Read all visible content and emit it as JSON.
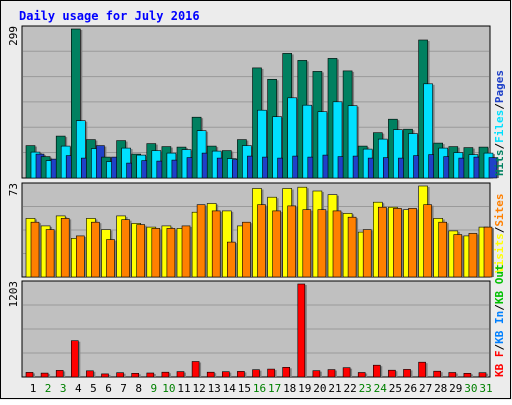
{
  "chart_data": {
    "type": "bar",
    "title": "Daily usage for July 2016",
    "colors": {
      "background": "#ececec",
      "plot_bg": "#c0c0c0",
      "grid": "#9a9a9a",
      "title": "#0000ff",
      "hits": "#008060",
      "files": "#00e0ff",
      "pages": "#1f41c8",
      "visits": "#ffff00",
      "sites": "#ff8000",
      "kb_f": "#ff0000",
      "kb_in": "#0080ff",
      "kb_out": "#00c000",
      "weekend": "#008000",
      "weekday": "#000000"
    },
    "categories": [
      "1",
      "2",
      "3",
      "4",
      "5",
      "6",
      "7",
      "8",
      "9",
      "10",
      "11",
      "12",
      "13",
      "14",
      "15",
      "16",
      "17",
      "18",
      "19",
      "20",
      "21",
      "22",
      "23",
      "24",
      "25",
      "26",
      "27",
      "28",
      "29",
      "30",
      "31"
    ],
    "weekend_days": [
      "2",
      "3",
      "9",
      "10",
      "16",
      "17",
      "23",
      "24",
      "30",
      "31"
    ],
    "panels": [
      {
        "id": "hits-files-pages",
        "ymax_label": "299",
        "ylim": [
          0,
          299
        ],
        "legend": [
          {
            "label": "Hits",
            "color": "#008060"
          },
          {
            "label": "Files",
            "color": "#00e0ff"
          },
          {
            "label": "Pages",
            "color": "#1f41c8"
          }
        ],
        "separator_color": "#000000",
        "series": [
          {
            "name": "Hits",
            "color": "#008060",
            "values": [
              65,
              43,
              84,
              299,
              77,
              42,
              75,
              48,
              69,
              63,
              62,
              122,
              64,
              55,
              77,
              221,
              198,
              250,
              236,
              214,
              240,
              215,
              64,
              91,
              118,
              98,
              277,
              70,
              63,
              61,
              62
            ]
          },
          {
            "name": "Files",
            "color": "#00e0ff",
            "values": [
              52,
              35,
              64,
              115,
              59,
              33,
              60,
              46,
              55,
              50,
              57,
              95,
              54,
              39,
              65,
              136,
              123,
              161,
              146,
              133,
              153,
              145,
              58,
              78,
              97,
              89,
              189,
              60,
              51,
              47,
              50
            ]
          },
          {
            "name": "Pages",
            "color": "#1f41c8",
            "values": [
              48,
              38,
              45,
              40,
              65,
              42,
              30,
              35,
              34,
              36,
              41,
              50,
              40,
              37,
              44,
              42,
              40,
              44,
              42,
              46,
              43,
              44,
              40,
              41,
              40,
              45,
              47,
              43,
              40,
              42,
              41
            ]
          }
        ]
      },
      {
        "id": "visits-sites",
        "ymax_label": "73",
        "ylim": [
          0,
          73
        ],
        "legend": [
          {
            "label": "Visits",
            "color": "#ffff00"
          },
          {
            "label": "Sites",
            "color": "#ff8000"
          }
        ],
        "separator_color": "#000000",
        "series": [
          {
            "name": "Visits",
            "color": "#ffff00",
            "values": [
              47,
              41,
              49,
              31,
              47,
              38,
              49,
              43,
              40,
              41,
              39,
              52,
              59,
              53,
              41,
              71,
              64,
              71,
              72,
              69,
              66,
              51,
              36,
              60,
              56,
              54,
              73,
              47,
              37,
              33,
              40
            ]
          },
          {
            "name": "Sites",
            "color": "#ff8000",
            "values": [
              44,
              38,
              47,
              33,
              44,
              30,
              46,
              42,
              39,
              39,
              41,
              58,
              53,
              28,
              44,
              58,
              53,
              57,
              54,
              54,
              53,
              48,
              38,
              56,
              55,
              55,
              58,
              44,
              34,
              35,
              40
            ]
          }
        ]
      },
      {
        "id": "kb",
        "ymax_label": "1203",
        "ylim": [
          0,
          1203
        ],
        "legend": [
          {
            "label": "KB F",
            "color": "#ff0000"
          },
          {
            "label": "KB In",
            "color": "#0080ff"
          },
          {
            "label": "KB Out",
            "color": "#00c000"
          }
        ],
        "separator_color": "#000000",
        "series": [
          {
            "name": "KB F",
            "color": "#ff0000",
            "values": [
              60,
              50,
              85,
              470,
              80,
              40,
              55,
              48,
              52,
              62,
              70,
              200,
              62,
              68,
              72,
              95,
              102,
              125,
              1203,
              82,
              96,
              120,
              58,
              152,
              88,
              98,
              192,
              75,
              58,
              48,
              56
            ]
          }
        ]
      }
    ]
  }
}
